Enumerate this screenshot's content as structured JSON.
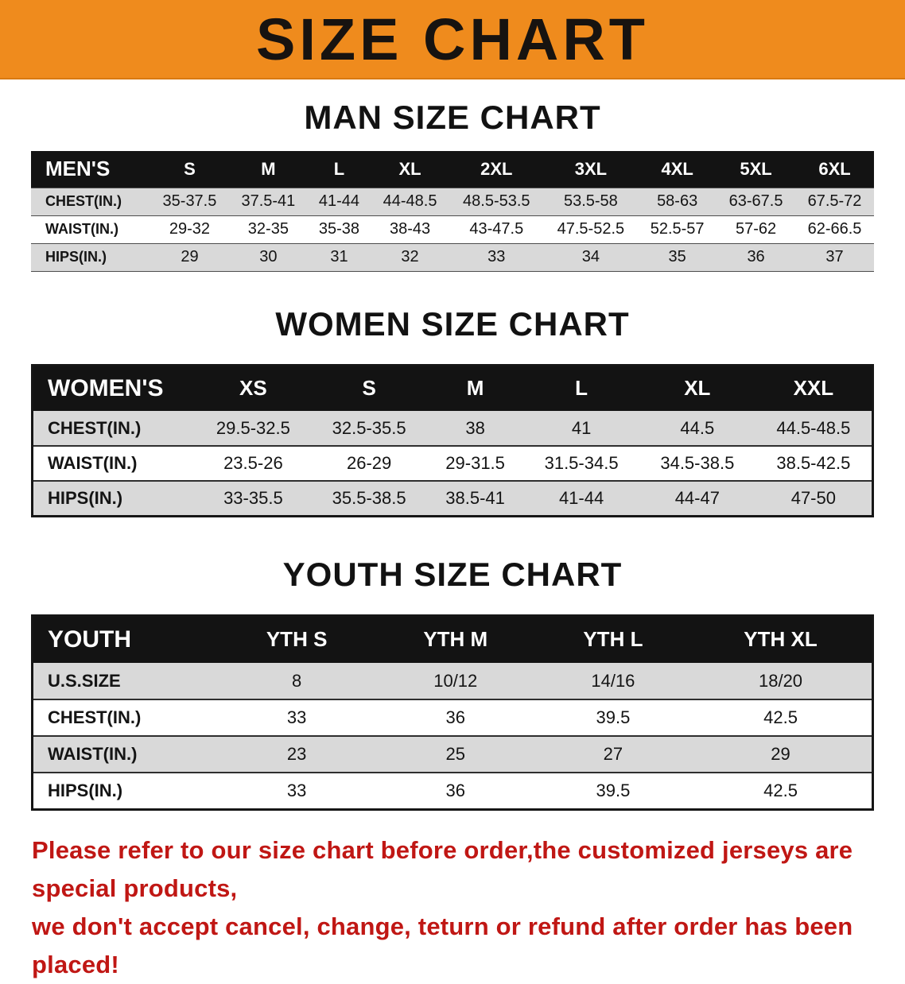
{
  "banner": {
    "title": "SIZE CHART"
  },
  "colors": {
    "banner_orange": "#ef8b1d",
    "table_header_black": "#131313",
    "row_stripe_gray": "#d9d9d9",
    "disclaimer_red": "#c01714"
  },
  "sections": [
    {
      "heading": "MAN SIZE CHART",
      "table": {
        "header": [
          "MEN'S",
          "S",
          "M",
          "L",
          "XL",
          "2XL",
          "3XL",
          "4XL",
          "5XL",
          "6XL"
        ],
        "rows": [
          [
            "CHEST(IN.)",
            "35-37.5",
            "37.5-41",
            "41-44",
            "44-48.5",
            "48.5-53.5",
            "53.5-58",
            "58-63",
            "63-67.5",
            "67.5-72"
          ],
          [
            "WAIST(IN.)",
            "29-32",
            "32-35",
            "35-38",
            "38-43",
            "43-47.5",
            "47.5-52.5",
            "52.5-57",
            "57-62",
            "62-66.5"
          ],
          [
            "HIPS(IN.)",
            "29",
            "30",
            "31",
            "32",
            "33",
            "34",
            "35",
            "36",
            "37"
          ]
        ]
      }
    },
    {
      "heading": "WOMEN SIZE CHART",
      "table": {
        "header": [
          "WOMEN'S",
          "XS",
          "S",
          "M",
          "L",
          "XL",
          "XXL"
        ],
        "rows": [
          [
            "CHEST(IN.)",
            "29.5-32.5",
            "32.5-35.5",
            "38",
            "41",
            "44.5",
            "44.5-48.5"
          ],
          [
            "WAIST(IN.)",
            "23.5-26",
            "26-29",
            "29-31.5",
            "31.5-34.5",
            "34.5-38.5",
            "38.5-42.5"
          ],
          [
            "HIPS(IN.)",
            "33-35.5",
            "35.5-38.5",
            "38.5-41",
            "41-44",
            "44-47",
            "47-50"
          ]
        ]
      }
    },
    {
      "heading": "YOUTH SIZE CHART",
      "table": {
        "header": [
          "YOUTH",
          "YTH S",
          "YTH M",
          "YTH L",
          "YTH XL"
        ],
        "rows": [
          [
            "U.S.SIZE",
            "8",
            "10/12",
            "14/16",
            "18/20"
          ],
          [
            "CHEST(IN.)",
            "33",
            "36",
            "39.5",
            "42.5"
          ],
          [
            "WAIST(IN.)",
            "23",
            "25",
            "27",
            "29"
          ],
          [
            "HIPS(IN.)",
            "33",
            "36",
            "39.5",
            "42.5"
          ]
        ]
      }
    }
  ],
  "disclaimer": {
    "line1": "Please refer to our size chart before order,the customized jerseys are special products,",
    "line2": "we don't accept cancel, change, teturn or refund after order has been placed!"
  }
}
